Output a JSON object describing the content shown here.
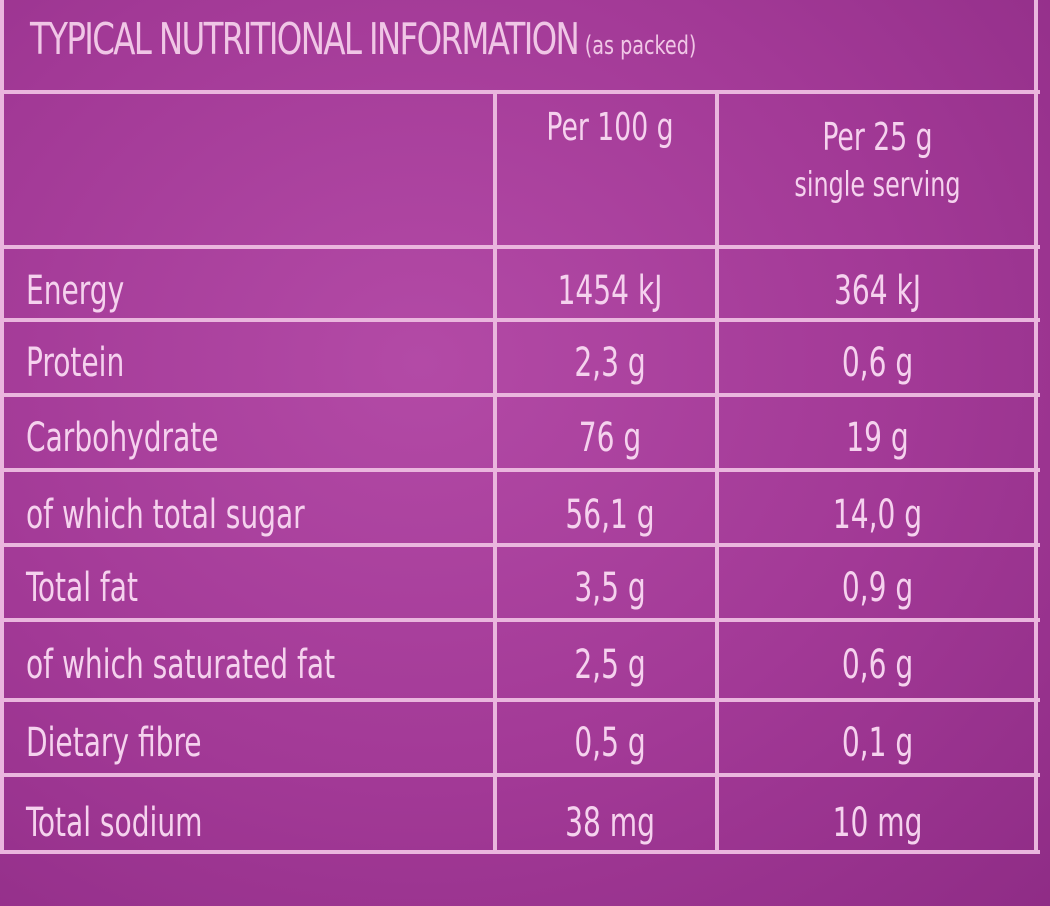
{
  "label": {
    "title": "TYPICAL NUTRITIONAL INFORMATION",
    "title_note": "(as packed)",
    "columns": [
      "Per 100 g",
      "Per 25 g",
      "single serving"
    ],
    "rows": [
      {
        "nutrient": "Energy",
        "per100": "1454 kJ",
        "per25": "364 kJ"
      },
      {
        "nutrient": "Protein",
        "per100": "2,3 g",
        "per25": "0,6 g"
      },
      {
        "nutrient": "Carbohydrate",
        "per100": "76 g",
        "per25": "19 g"
      },
      {
        "nutrient": "of which total sugar",
        "per100": "56,1 g",
        "per25": "14,0 g"
      },
      {
        "nutrient": "Total fat",
        "per100": "3,5 g",
        "per25": "0,9 g"
      },
      {
        "nutrient": "of which saturated fat",
        "per100": "2,5 g",
        "per25": "0,6 g"
      },
      {
        "nutrient": "Dietary fibre",
        "per100": "0,5 g",
        "per25": "0,1 g"
      },
      {
        "nutrient": "Total sodium",
        "per100": "38 mg",
        "per25": "10 mg"
      }
    ],
    "colors": {
      "background": "#a23996",
      "text": "#f3cdea",
      "rules": "#eab6de"
    }
  }
}
